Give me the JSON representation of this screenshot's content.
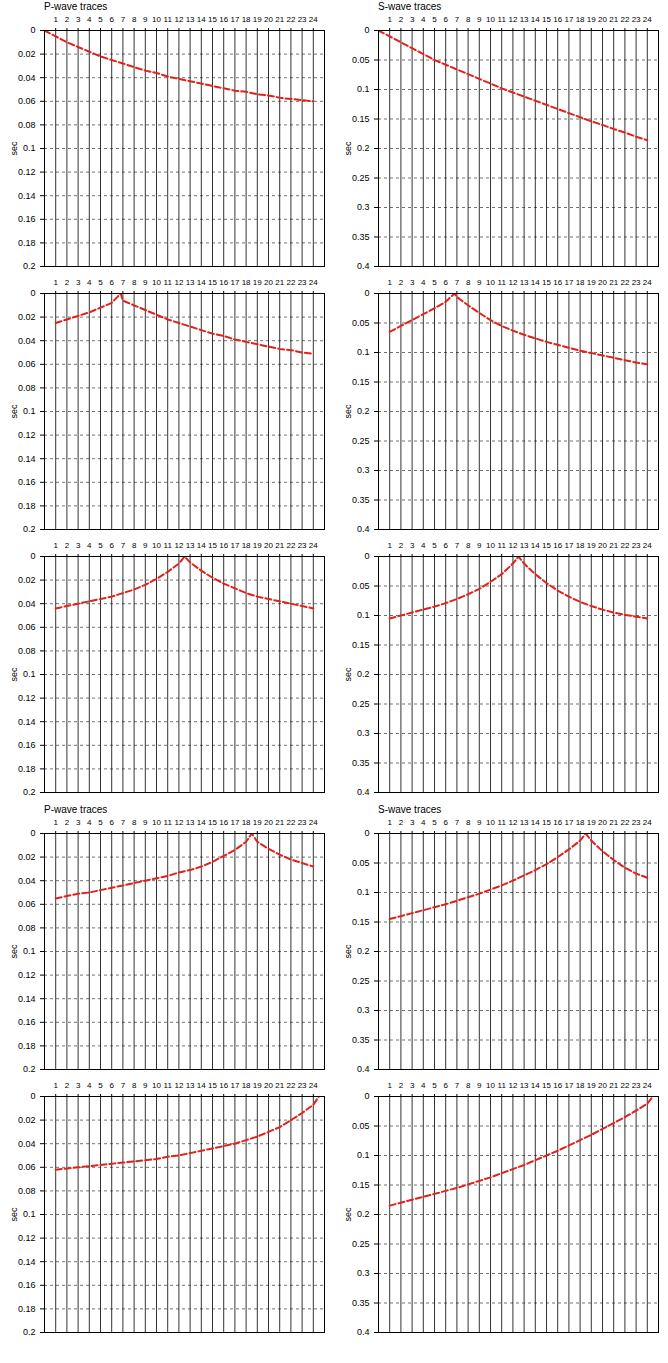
{
  "chart_data": [
    {
      "type": "line",
      "title": "P-wave traces",
      "y_label": "sec",
      "color": "#e3211c",
      "line_style": "dashed",
      "grid": true,
      "xlim": [
        0,
        25
      ],
      "xticks": [
        1,
        2,
        3,
        4,
        5,
        6,
        7,
        8,
        9,
        10,
        11,
        12,
        13,
        14,
        15,
        16,
        17,
        18,
        19,
        20,
        21,
        22,
        23,
        24
      ],
      "ylim": [
        0,
        0.2
      ],
      "yticks": [
        0,
        0.02,
        0.04,
        0.06,
        0.08,
        0.1,
        0.12,
        0.14,
        0.16,
        0.18,
        0.2
      ],
      "x": [
        0,
        1,
        2,
        3,
        4,
        5,
        6,
        7,
        8,
        9,
        10,
        11,
        12,
        13,
        14,
        15,
        16,
        17,
        18,
        19,
        20,
        21,
        22,
        23,
        24
      ],
      "values": [
        0,
        0.005,
        0.01,
        0.014,
        0.018,
        0.022,
        0.025,
        0.028,
        0.031,
        0.034,
        0.036,
        0.039,
        0.041,
        0.043,
        0.045,
        0.047,
        0.049,
        0.051,
        0.052,
        0.054,
        0.055,
        0.057,
        0.058,
        0.059,
        0.06
      ]
    },
    {
      "type": "line",
      "title": "S-wave traces",
      "y_label": "sec",
      "color": "#e3211c",
      "line_style": "dashed",
      "grid": true,
      "xlim": [
        0,
        25
      ],
      "xticks": [
        1,
        2,
        3,
        4,
        5,
        6,
        7,
        8,
        9,
        10,
        11,
        12,
        13,
        14,
        15,
        16,
        17,
        18,
        19,
        20,
        21,
        22,
        23,
        24
      ],
      "ylim": [
        0,
        0.4
      ],
      "yticks": [
        0,
        0.05,
        0.1,
        0.15,
        0.2,
        0.25,
        0.3,
        0.35,
        0.4
      ],
      "x": [
        0,
        1,
        2,
        3,
        4,
        5,
        6,
        7,
        8,
        9,
        10,
        11,
        12,
        13,
        14,
        15,
        16,
        17,
        18,
        19,
        20,
        21,
        22,
        23,
        24
      ],
      "values": [
        0,
        0.01,
        0.02,
        0.03,
        0.04,
        0.05,
        0.058,
        0.066,
        0.074,
        0.082,
        0.09,
        0.098,
        0.105,
        0.112,
        0.119,
        0.126,
        0.133,
        0.14,
        0.147,
        0.154,
        0.16,
        0.167,
        0.173,
        0.18,
        0.186
      ]
    },
    {
      "type": "line",
      "y_label": "sec",
      "color": "#e3211c",
      "line_style": "dashed",
      "grid": true,
      "xlim": [
        0,
        25
      ],
      "xticks": [
        1,
        2,
        3,
        4,
        5,
        6,
        7,
        8,
        9,
        10,
        11,
        12,
        13,
        14,
        15,
        16,
        17,
        18,
        19,
        20,
        21,
        22,
        23,
        24
      ],
      "ylim": [
        0,
        0.2
      ],
      "yticks": [
        0,
        0.02,
        0.04,
        0.06,
        0.08,
        0.1,
        0.12,
        0.14,
        0.16,
        0.18,
        0.2
      ],
      "x": [
        1,
        2,
        3,
        4,
        5,
        6,
        6.8,
        7,
        8,
        9,
        10,
        11,
        12,
        13,
        14,
        15,
        16,
        17,
        18,
        19,
        20,
        21,
        22,
        23,
        24
      ],
      "values": [
        0.025,
        0.022,
        0.019,
        0.016,
        0.012,
        0.008,
        0,
        0.006,
        0.01,
        0.014,
        0.018,
        0.022,
        0.025,
        0.028,
        0.031,
        0.034,
        0.036,
        0.039,
        0.041,
        0.043,
        0.045,
        0.047,
        0.048,
        0.05,
        0.051
      ]
    },
    {
      "type": "line",
      "y_label": "sec",
      "color": "#e3211c",
      "line_style": "dashed",
      "grid": true,
      "xlim": [
        0,
        25
      ],
      "xticks": [
        1,
        2,
        3,
        4,
        5,
        6,
        7,
        8,
        9,
        10,
        11,
        12,
        13,
        14,
        15,
        16,
        17,
        18,
        19,
        20,
        21,
        22,
        23,
        24
      ],
      "ylim": [
        0,
        0.4
      ],
      "yticks": [
        0,
        0.05,
        0.1,
        0.15,
        0.2,
        0.25,
        0.3,
        0.35,
        0.4
      ],
      "x": [
        1,
        2,
        3,
        4,
        5,
        6,
        6.8,
        7,
        8,
        9,
        10,
        11,
        12,
        13,
        14,
        15,
        16,
        17,
        18,
        19,
        20,
        21,
        22,
        23,
        24
      ],
      "values": [
        0.065,
        0.055,
        0.045,
        0.035,
        0.025,
        0.014,
        0,
        0.006,
        0.02,
        0.033,
        0.045,
        0.055,
        0.063,
        0.07,
        0.076,
        0.082,
        0.087,
        0.092,
        0.097,
        0.101,
        0.105,
        0.109,
        0.113,
        0.117,
        0.12
      ]
    },
    {
      "type": "line",
      "y_label": "sec",
      "color": "#e3211c",
      "line_style": "dashed",
      "grid": true,
      "xlim": [
        0,
        25
      ],
      "xticks": [
        1,
        2,
        3,
        4,
        5,
        6,
        7,
        8,
        9,
        10,
        11,
        12,
        13,
        14,
        15,
        16,
        17,
        18,
        19,
        20,
        21,
        22,
        23,
        24
      ],
      "ylim": [
        0,
        0.2
      ],
      "yticks": [
        0,
        0.02,
        0.04,
        0.06,
        0.08,
        0.1,
        0.12,
        0.14,
        0.16,
        0.18,
        0.2
      ],
      "x": [
        1,
        2,
        3,
        4,
        5,
        6,
        7,
        8,
        9,
        10,
        11,
        12,
        12.5,
        13,
        14,
        15,
        16,
        17,
        18,
        19,
        20,
        21,
        22,
        23,
        24
      ],
      "values": [
        0.044,
        0.042,
        0.04,
        0.038,
        0.036,
        0.034,
        0.031,
        0.028,
        0.024,
        0.019,
        0.013,
        0.006,
        0,
        0.005,
        0.012,
        0.018,
        0.023,
        0.027,
        0.031,
        0.034,
        0.036,
        0.038,
        0.04,
        0.042,
        0.044
      ]
    },
    {
      "type": "line",
      "y_label": "sec",
      "color": "#e3211c",
      "line_style": "dashed",
      "grid": true,
      "xlim": [
        0,
        25
      ],
      "xticks": [
        1,
        2,
        3,
        4,
        5,
        6,
        7,
        8,
        9,
        10,
        11,
        12,
        13,
        14,
        15,
        16,
        17,
        18,
        19,
        20,
        21,
        22,
        23,
        24
      ],
      "ylim": [
        0,
        0.4
      ],
      "yticks": [
        0,
        0.05,
        0.1,
        0.15,
        0.2,
        0.25,
        0.3,
        0.35,
        0.4
      ],
      "x": [
        1,
        2,
        3,
        4,
        5,
        6,
        7,
        8,
        9,
        10,
        11,
        12,
        12.5,
        13,
        14,
        15,
        16,
        17,
        18,
        19,
        20,
        21,
        22,
        23,
        24
      ],
      "values": [
        0.105,
        0.1,
        0.095,
        0.09,
        0.085,
        0.079,
        0.072,
        0.064,
        0.055,
        0.043,
        0.03,
        0.012,
        0,
        0.012,
        0.03,
        0.045,
        0.058,
        0.068,
        0.077,
        0.084,
        0.09,
        0.095,
        0.099,
        0.102,
        0.105
      ]
    },
    {
      "type": "line",
      "title": "P-wave traces",
      "y_label": "sec",
      "color": "#e3211c",
      "line_style": "dashed",
      "grid": true,
      "xlim": [
        0,
        25
      ],
      "xticks": [
        1,
        2,
        3,
        4,
        5,
        6,
        7,
        8,
        9,
        10,
        11,
        12,
        13,
        14,
        15,
        16,
        17,
        18,
        19,
        20,
        21,
        22,
        23,
        24
      ],
      "ylim": [
        0,
        0.2
      ],
      "yticks": [
        0,
        0.02,
        0.04,
        0.06,
        0.08,
        0.1,
        0.12,
        0.14,
        0.16,
        0.18,
        0.2
      ],
      "x": [
        1,
        2,
        3,
        4,
        5,
        6,
        7,
        8,
        9,
        10,
        11,
        12,
        13,
        14,
        15,
        16,
        17,
        18,
        18.5,
        19,
        20,
        21,
        22,
        23,
        24
      ],
      "values": [
        0.055,
        0.053,
        0.051,
        0.05,
        0.048,
        0.046,
        0.044,
        0.042,
        0.04,
        0.038,
        0.036,
        0.033,
        0.031,
        0.028,
        0.024,
        0.019,
        0.014,
        0.007,
        0,
        0.007,
        0.013,
        0.018,
        0.022,
        0.025,
        0.028
      ]
    },
    {
      "type": "line",
      "title": "S-wave traces",
      "y_label": "sec",
      "color": "#e3211c",
      "line_style": "dashed",
      "grid": true,
      "xlim": [
        0,
        25
      ],
      "xticks": [
        1,
        2,
        3,
        4,
        5,
        6,
        7,
        8,
        9,
        10,
        11,
        12,
        13,
        14,
        15,
        16,
        17,
        18,
        19,
        20,
        21,
        22,
        23,
        24
      ],
      "ylim": [
        0,
        0.4
      ],
      "yticks": [
        0,
        0.05,
        0.1,
        0.15,
        0.2,
        0.25,
        0.3,
        0.35,
        0.4
      ],
      "x": [
        1,
        2,
        3,
        4,
        5,
        6,
        7,
        8,
        9,
        10,
        11,
        12,
        13,
        14,
        15,
        16,
        17,
        18,
        18.5,
        19,
        20,
        21,
        22,
        23,
        24
      ],
      "values": [
        0.145,
        0.14,
        0.135,
        0.13,
        0.125,
        0.12,
        0.114,
        0.108,
        0.102,
        0.095,
        0.088,
        0.08,
        0.071,
        0.062,
        0.052,
        0.04,
        0.027,
        0.012,
        0,
        0.012,
        0.03,
        0.045,
        0.058,
        0.068,
        0.075
      ]
    },
    {
      "type": "line",
      "y_label": "sec",
      "color": "#e3211c",
      "line_style": "dashed",
      "grid": true,
      "xlim": [
        0,
        25
      ],
      "xticks": [
        1,
        2,
        3,
        4,
        5,
        6,
        7,
        8,
        9,
        10,
        11,
        12,
        13,
        14,
        15,
        16,
        17,
        18,
        19,
        20,
        21,
        22,
        23,
        24
      ],
      "ylim": [
        0,
        0.2
      ],
      "yticks": [
        0,
        0.02,
        0.04,
        0.06,
        0.08,
        0.1,
        0.12,
        0.14,
        0.16,
        0.18,
        0.2
      ],
      "x": [
        1,
        2,
        3,
        4,
        5,
        6,
        7,
        8,
        9,
        10,
        11,
        12,
        13,
        14,
        15,
        16,
        17,
        18,
        19,
        20,
        21,
        22,
        23,
        24,
        24.5
      ],
      "values": [
        0.062,
        0.061,
        0.06,
        0.059,
        0.058,
        0.057,
        0.056,
        0.055,
        0.054,
        0.053,
        0.051,
        0.05,
        0.048,
        0.046,
        0.044,
        0.042,
        0.04,
        0.037,
        0.034,
        0.03,
        0.026,
        0.02,
        0.014,
        0.007,
        0
      ]
    },
    {
      "type": "line",
      "y_label": "sec",
      "color": "#e3211c",
      "line_style": "dashed",
      "grid": true,
      "xlim": [
        0,
        25
      ],
      "xticks": [
        1,
        2,
        3,
        4,
        5,
        6,
        7,
        8,
        9,
        10,
        11,
        12,
        13,
        14,
        15,
        16,
        17,
        18,
        19,
        20,
        21,
        22,
        23,
        24
      ],
      "ylim": [
        0,
        0.4
      ],
      "yticks": [
        0,
        0.05,
        0.1,
        0.15,
        0.2,
        0.25,
        0.3,
        0.35,
        0.4
      ],
      "x": [
        1,
        2,
        3,
        4,
        5,
        6,
        7,
        8,
        9,
        10,
        11,
        12,
        13,
        14,
        15,
        16,
        17,
        18,
        19,
        20,
        21,
        22,
        23,
        24,
        24.5
      ],
      "values": [
        0.185,
        0.18,
        0.175,
        0.17,
        0.165,
        0.16,
        0.155,
        0.149,
        0.143,
        0.137,
        0.13,
        0.123,
        0.116,
        0.108,
        0.1,
        0.092,
        0.083,
        0.074,
        0.065,
        0.055,
        0.045,
        0.035,
        0.024,
        0.012,
        0
      ]
    }
  ]
}
